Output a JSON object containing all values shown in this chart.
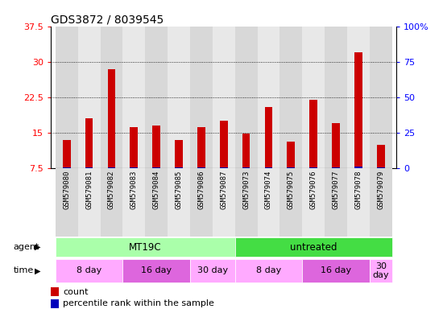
{
  "title": "GDS3872 / 8039545",
  "samples": [
    "GSM579080",
    "GSM579081",
    "GSM579082",
    "GSM579083",
    "GSM579084",
    "GSM579085",
    "GSM579086",
    "GSM579087",
    "GSM579073",
    "GSM579074",
    "GSM579075",
    "GSM579076",
    "GSM579077",
    "GSM579078",
    "GSM579079"
  ],
  "count_values": [
    13.5,
    18.0,
    28.5,
    16.2,
    16.5,
    13.5,
    16.2,
    17.5,
    14.8,
    20.5,
    13.2,
    22.0,
    17.0,
    32.0,
    12.5
  ],
  "percentile_values": [
    0.5,
    1.0,
    1.0,
    0.8,
    0.8,
    0.7,
    0.8,
    0.8,
    0.7,
    0.9,
    0.7,
    0.9,
    0.8,
    1.5,
    0.7
  ],
  "ylim_left": [
    7.5,
    37.5
  ],
  "ylim_right": [
    0,
    100
  ],
  "yticks_left": [
    7.5,
    15.0,
    22.5,
    30.0,
    37.5
  ],
  "ytick_labels_left": [
    "7.5",
    "15",
    "22.5",
    "30",
    "37.5"
  ],
  "yticks_right": [
    0,
    25,
    50,
    75,
    100
  ],
  "ytick_labels_right": [
    "0",
    "25",
    "50",
    "75",
    "100%"
  ],
  "bar_color_count": "#cc0000",
  "bar_color_pct": "#0000bb",
  "agent_mt19c_color": "#aaffaa",
  "agent_untreated_color": "#44dd44",
  "time_8day_color": "#ffaaff",
  "time_16day_color": "#dd66dd",
  "time_30day_color": "#ffaaff",
  "col_even_color": "#d8d8d8",
  "col_odd_color": "#e8e8e8",
  "agent_row": {
    "label": "agent",
    "groups": [
      {
        "text": "MT19C",
        "start": 0,
        "end": 7,
        "color": "#aaffaa"
      },
      {
        "text": "untreated",
        "start": 8,
        "end": 14,
        "color": "#44dd44"
      }
    ]
  },
  "time_row": {
    "label": "time",
    "groups": [
      {
        "text": "8 day",
        "start": 0,
        "end": 2,
        "color": "#ffaaff"
      },
      {
        "text": "16 day",
        "start": 3,
        "end": 5,
        "color": "#dd66dd"
      },
      {
        "text": "30 day",
        "start": 6,
        "end": 7,
        "color": "#ffaaff"
      },
      {
        "text": "8 day",
        "start": 8,
        "end": 10,
        "color": "#ffaaff"
      },
      {
        "text": "16 day",
        "start": 11,
        "end": 13,
        "color": "#dd66dd"
      },
      {
        "text": "30\nday",
        "start": 14,
        "end": 14,
        "color": "#ffaaff"
      }
    ]
  },
  "legend_count_label": "count",
  "legend_pct_label": "percentile rank within the sample",
  "bar_width": 0.35
}
